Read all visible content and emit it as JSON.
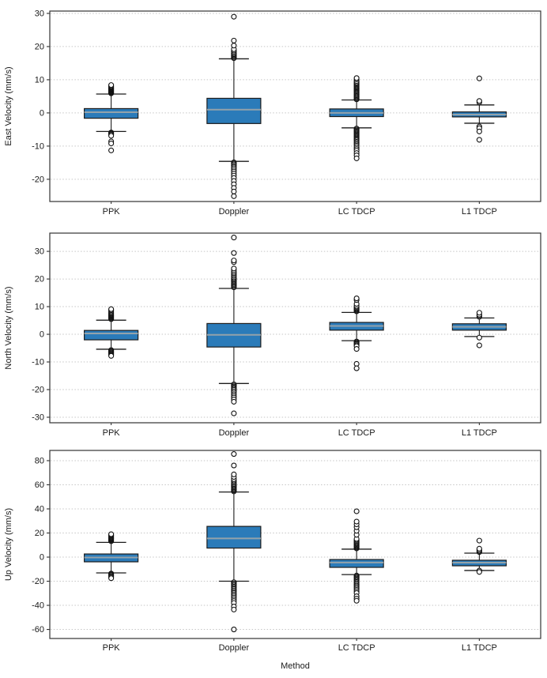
{
  "figure": {
    "xlabel": "Method",
    "categories": [
      "PPK",
      "Doppler",
      "LC TDCP",
      "L1 TDCP"
    ],
    "colors": {
      "box_fill": "#2b7bb9",
      "box_edge": "#1c1c1c",
      "median": "#93a2aa",
      "grid": "#c6c6c6",
      "frame": "#333333",
      "text": "#1a1a1a",
      "background": "#ffffff"
    }
  },
  "chart_data": [
    {
      "type": "box",
      "ylabel": "East Velocity (mm/s)",
      "xlabel": "",
      "categories": [
        "PPK",
        "Doppler",
        "LC TDCP",
        "L1 TDCP"
      ],
      "yticks": [
        -20,
        -10,
        0,
        10,
        20,
        30
      ],
      "ylim": [
        -26.7,
        30.7
      ],
      "grid": "horizontal-dotted",
      "boxes": [
        {
          "label": "PPK",
          "q1": -1.6,
          "median": 0.2,
          "q3": 1.3,
          "whisker_low": -5.6,
          "whisker_high": 5.7,
          "outliers": [
            5.9,
            6.1,
            6.3,
            6.5,
            6.7,
            6.9,
            7.1,
            7.3,
            7.5,
            7.7,
            7.9,
            8.1,
            8.4,
            -5.9,
            -6.1,
            -6.3,
            -6.6,
            -6.9,
            -8.6,
            -9.2,
            -11.3
          ]
        },
        {
          "label": "Doppler",
          "q1": -3.2,
          "median": 1.0,
          "q3": 4.4,
          "whisker_low": -14.6,
          "whisker_high": 16.3,
          "outliers": [
            16.5,
            16.8,
            17.1,
            17.4,
            17.7,
            18.0,
            18.4,
            18.8,
            19.2,
            20.3,
            21.8,
            29.0,
            -14.9,
            -15.2,
            -15.5,
            -15.9,
            -16.3,
            -16.7,
            -17.2,
            -17.7,
            -18.3,
            -18.9,
            -19.6,
            -20.5,
            -21.5,
            -22.6,
            -23.7,
            -25.1
          ]
        },
        {
          "label": "LC TDCP",
          "q1": -1.1,
          "median": 0.0,
          "q3": 1.2,
          "whisker_low": -4.5,
          "whisker_high": 3.9,
          "outliers": [
            4.1,
            4.4,
            4.7,
            5.0,
            5.3,
            5.6,
            5.9,
            6.2,
            6.5,
            6.8,
            7.1,
            7.4,
            7.7,
            8.0,
            8.3,
            8.6,
            8.9,
            9.2,
            9.6,
            10.1,
            10.5,
            -4.7,
            -5.0,
            -5.3,
            -5.6,
            -5.9,
            -6.2,
            -6.5,
            -6.8,
            -7.1,
            -7.4,
            -7.7,
            -8.0,
            -8.3,
            -8.7,
            -9.1,
            -9.5,
            -9.9,
            -10.4,
            -10.9,
            -11.4,
            -12.1,
            -12.8,
            -13.7
          ]
        },
        {
          "label": "L1 TDCP",
          "q1": -1.2,
          "median": -0.5,
          "q3": 0.3,
          "whisker_low": -3.1,
          "whisker_high": 2.4,
          "outliers": [
            3.2,
            3.6,
            10.4,
            -4.1,
            -4.6,
            -5.6,
            -8.1
          ]
        }
      ]
    },
    {
      "type": "box",
      "ylabel": "North Velocity (mm/s)",
      "xlabel": "",
      "categories": [
        "PPK",
        "Doppler",
        "LC TDCP",
        "L1 TDCP"
      ],
      "yticks": [
        -30,
        -20,
        -10,
        0,
        10,
        20,
        30
      ],
      "ylim": [
        -32.0,
        36.6
      ],
      "grid": "horizontal-dotted",
      "boxes": [
        {
          "label": "PPK",
          "q1": -2.0,
          "median": 0.3,
          "q3": 1.4,
          "whisker_low": -5.4,
          "whisker_high": 5.1,
          "outliers": [
            5.5,
            5.8,
            6.1,
            6.4,
            6.7,
            7.0,
            7.3,
            7.6,
            7.9,
            8.3,
            8.7,
            9.1,
            -5.7,
            -6.0,
            -6.3,
            -6.6,
            -6.9,
            -7.2,
            -7.5,
            -7.8
          ]
        },
        {
          "label": "Doppler",
          "q1": -4.6,
          "median": -0.2,
          "q3": 3.9,
          "whisker_low": -17.8,
          "whisker_high": 16.6,
          "outliers": [
            17.0,
            17.4,
            17.8,
            18.2,
            18.6,
            19.0,
            19.4,
            19.8,
            20.2,
            20.6,
            21.1,
            21.6,
            22.1,
            22.6,
            23.2,
            23.8,
            26.1,
            26.7,
            29.4,
            35.0,
            -18.1,
            -18.5,
            -18.9,
            -19.3,
            -19.7,
            -20.1,
            -20.6,
            -21.1,
            -21.7,
            -22.3,
            -22.9,
            -23.6,
            -24.4,
            -28.6
          ]
        },
        {
          "label": "LC TDCP",
          "q1": 1.5,
          "median": 3.0,
          "q3": 4.3,
          "whisker_low": -2.3,
          "whisker_high": 7.9,
          "outliers": [
            8.3,
            8.6,
            8.9,
            9.2,
            9.5,
            9.9,
            10.3,
            11.0,
            12.4,
            13.0,
            -2.6,
            -2.9,
            -3.2,
            -3.5,
            -3.9,
            -4.3,
            -5.3,
            -10.7,
            -12.3
          ]
        },
        {
          "label": "L1 TDCP",
          "q1": 1.5,
          "median": 2.7,
          "q3": 3.8,
          "whisker_low": -0.8,
          "whisker_high": 5.9,
          "outliers": [
            6.3,
            6.7,
            7.1,
            7.8,
            -1.2,
            -4.0
          ]
        }
      ]
    },
    {
      "type": "box",
      "ylabel": "Up Velocity (mm/s)",
      "xlabel": "Method",
      "categories": [
        "PPK",
        "Doppler",
        "LC TDCP",
        "L1 TDCP"
      ],
      "yticks": [
        -60,
        -40,
        -20,
        0,
        20,
        40,
        60,
        80
      ],
      "ylim": [
        -67.5,
        88.5
      ],
      "grid": "horizontal-dotted",
      "boxes": [
        {
          "label": "PPK",
          "q1": -3.9,
          "median": -0.3,
          "q3": 2.6,
          "whisker_low": -13.1,
          "whisker_high": 12.2,
          "outliers": [
            13.2,
            13.8,
            14.4,
            15.0,
            15.6,
            16.2,
            16.9,
            17.6,
            18.3,
            19.0,
            -13.6,
            -14.3,
            -15.0,
            -15.8,
            -16.6,
            -17.5
          ]
        },
        {
          "label": "Doppler",
          "q1": 7.5,
          "median": 15.5,
          "q3": 25.5,
          "whisker_low": -20.0,
          "whisker_high": 54.0,
          "outliers": [
            54.5,
            55.3,
            56.1,
            57.0,
            57.9,
            58.8,
            59.7,
            60.6,
            61.6,
            62.6,
            63.6,
            64.7,
            66.5,
            68.6,
            76.0,
            85.5,
            -20.8,
            -21.7,
            -22.6,
            -23.5,
            -24.5,
            -25.5,
            -26.5,
            -27.6,
            -28.7,
            -29.8,
            -31.0,
            -32.3,
            -33.6,
            -35.0,
            -36.4,
            -38.0,
            -41.0,
            -43.5,
            -60.0
          ]
        },
        {
          "label": "LC TDCP",
          "q1": -8.5,
          "median": -4.5,
          "q3": -2.0,
          "whisker_low": -14.5,
          "whisker_high": 6.6,
          "outliers": [
            7.2,
            7.9,
            8.6,
            9.3,
            10.0,
            10.8,
            11.6,
            12.4,
            13.3,
            14.2,
            15.1,
            18.5,
            21.8,
            24.8,
            27.2,
            29.5,
            38.0,
            -15.3,
            -16.1,
            -16.9,
            -17.8,
            -18.7,
            -19.6,
            -20.6,
            -21.6,
            -22.6,
            -23.7,
            -24.8,
            -26.0,
            -27.2,
            -28.5,
            -29.8,
            -32.5,
            -34.5,
            -36.2
          ]
        },
        {
          "label": "L1 TDCP",
          "q1": -7.2,
          "median": -4.6,
          "q3": -2.6,
          "whisker_low": -11.1,
          "whisker_high": 3.3,
          "outliers": [
            4.2,
            5.0,
            5.8,
            7.0,
            13.7,
            -11.2,
            -12.3
          ]
        }
      ]
    }
  ]
}
